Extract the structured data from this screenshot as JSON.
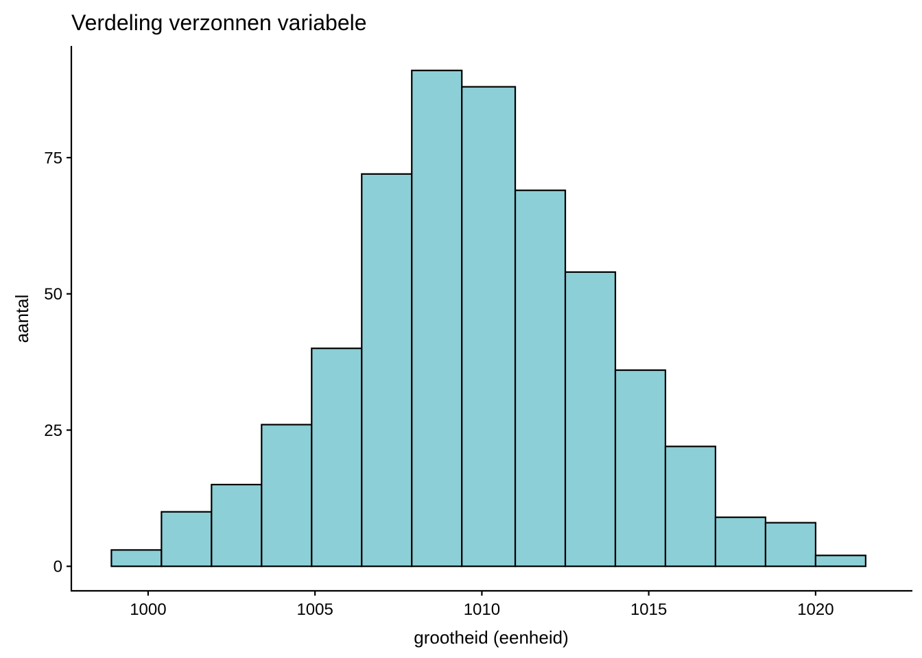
{
  "chart_data": {
    "type": "bar",
    "title": "Verdeling verzonnen variabele",
    "xlabel": "grootheid (eenheid)",
    "ylabel": "aantal",
    "bins": [
      {
        "x0": 998.9,
        "x1": 1000.4,
        "count": 3
      },
      {
        "x0": 1000.4,
        "x1": 1001.9,
        "count": 10
      },
      {
        "x0": 1001.9,
        "x1": 1003.4,
        "count": 15
      },
      {
        "x0": 1003.4,
        "x1": 1004.9,
        "count": 26
      },
      {
        "x0": 1004.9,
        "x1": 1006.4,
        "count": 40
      },
      {
        "x0": 1006.4,
        "x1": 1007.9,
        "count": 72
      },
      {
        "x0": 1007.9,
        "x1": 1009.4,
        "count": 91
      },
      {
        "x0": 1009.4,
        "x1": 1011.0,
        "count": 88
      },
      {
        "x0": 1011.0,
        "x1": 1012.5,
        "count": 69
      },
      {
        "x0": 1012.5,
        "x1": 1014.0,
        "count": 54
      },
      {
        "x0": 1014.0,
        "x1": 1015.5,
        "count": 36
      },
      {
        "x0": 1015.5,
        "x1": 1017.0,
        "count": 22
      },
      {
        "x0": 1017.0,
        "x1": 1018.5,
        "count": 9
      },
      {
        "x0": 1018.5,
        "x1": 1020.0,
        "count": 8
      },
      {
        "x0": 1020.0,
        "x1": 1021.5,
        "count": 2
      }
    ],
    "xticks": [
      1000,
      1005,
      1010,
      1015,
      1020
    ],
    "yticks": [
      0,
      25,
      50,
      75
    ],
    "xlim": [
      997.7,
      1022.9
    ],
    "ylim": [
      -4.5,
      95.5
    ],
    "grid": false,
    "legend": "none",
    "colors": {
      "bar_fill": "#8ccfd6",
      "bar_stroke": "#000000"
    }
  }
}
